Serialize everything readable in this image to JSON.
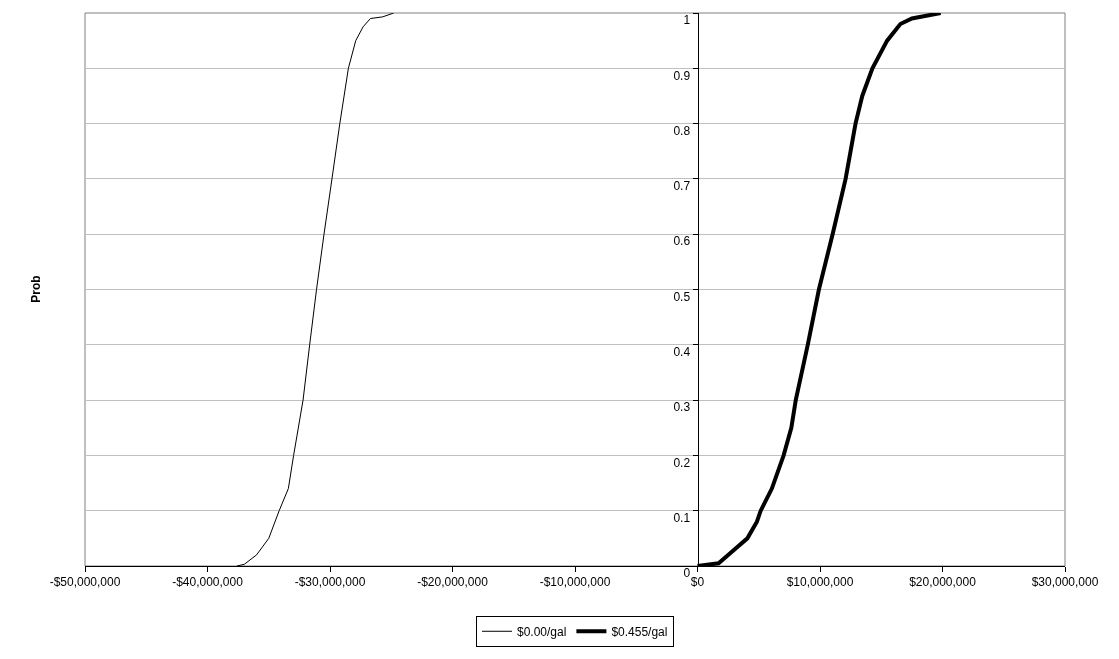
{
  "chart_data": {
    "type": "line",
    "ylabel": "Prob",
    "series": [
      {
        "name": "$0.00/gal",
        "color": "#000000",
        "x": [
          -37600000,
          -37000000,
          -36000000,
          -35000000,
          -34150000,
          -33400000,
          -32970000,
          -32200000,
          -31660000,
          -31100000,
          -30490000,
          -29840000,
          -29200000,
          -28500000,
          -27900000,
          -27300000,
          -26700000,
          -25700000,
          -24800000
        ],
        "values": [
          0,
          0.003,
          0.02,
          0.05,
          0.1,
          0.14,
          0.2,
          0.3,
          0.4,
          0.5,
          0.6,
          0.7,
          0.8,
          0.9,
          0.95,
          0.975,
          0.99,
          0.993,
          1
        ]
      },
      {
        "name": "$0.455/gal",
        "color": "#000000",
        "x": [
          0,
          1720000,
          2500000,
          4070000,
          4850000,
          5160000,
          6070000,
          7030000,
          7660000,
          8020000,
          9000000,
          9910000,
          11030000,
          12090000,
          12900000,
          13450000,
          14280000,
          15480000,
          16560000,
          17500000,
          19850000
        ],
        "values": [
          0,
          0.005,
          0.02,
          0.05,
          0.08,
          0.1,
          0.14,
          0.2,
          0.25,
          0.3,
          0.4,
          0.5,
          0.6,
          0.7,
          0.8,
          0.85,
          0.9,
          0.95,
          0.98,
          0.99,
          1
        ]
      }
    ],
    "xlim": [
      -50000000,
      30000000
    ],
    "xticks": [
      {
        "value": -50000000,
        "label": "-$50,000,000"
      },
      {
        "value": -40000000,
        "label": "-$40,000,000"
      },
      {
        "value": -30000000,
        "label": "-$30,000,000"
      },
      {
        "value": -20000000,
        "label": "-$20,000,000"
      },
      {
        "value": -10000000,
        "label": "-$10,000,000"
      },
      {
        "value": 0,
        "label": "$0"
      },
      {
        "value": 10000000,
        "label": "$10,000,000"
      },
      {
        "value": 20000000,
        "label": "$20,000,000"
      },
      {
        "value": 30000000,
        "label": "$30,000,000"
      }
    ],
    "ylim": [
      0,
      1
    ],
    "yticks": [
      0,
      0.1,
      0.2,
      0.3,
      0.4,
      0.5,
      0.6,
      0.7,
      0.8,
      0.9,
      1
    ],
    "grid": "y",
    "legend": "bottom",
    "marker": "none",
    "line_style": "solid"
  }
}
